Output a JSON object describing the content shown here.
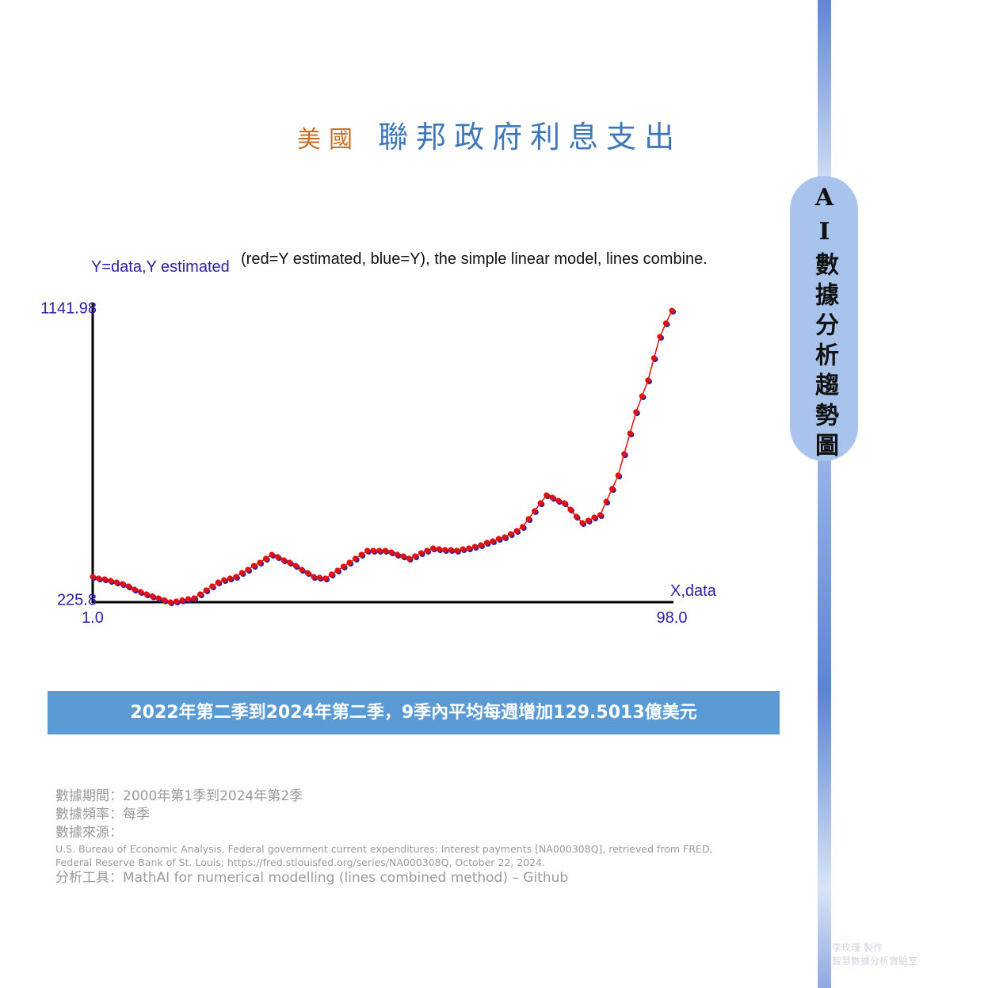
{
  "header": {
    "title_a": "美國",
    "title_b": "聯邦政府利息支出"
  },
  "side_label": "AI數據分析趨勢圖",
  "chart_data": {
    "type": "scatter",
    "ylabel": "Y=data,Y estimated",
    "title": "(red=Y estimated, blue=Y), the simple linear model, lines combine.",
    "xlabel": "X,data",
    "x": [
      1,
      2,
      3,
      4,
      5,
      6,
      7,
      8,
      9,
      10,
      11,
      12,
      13,
      14,
      15,
      16,
      17,
      18,
      19,
      20,
      21,
      22,
      23,
      24,
      25,
      26,
      27,
      28,
      29,
      30,
      31,
      32,
      33,
      34,
      35,
      36,
      37,
      38,
      39,
      40,
      41,
      42,
      43,
      44,
      45,
      46,
      47,
      48,
      49,
      50,
      51,
      52,
      53,
      54,
      55,
      56,
      57,
      58,
      59,
      60,
      61,
      62,
      63,
      64,
      65,
      66,
      67,
      68,
      69,
      70,
      71,
      72,
      73,
      74,
      75,
      76,
      77,
      78,
      79,
      80,
      81,
      82,
      83,
      84,
      85,
      86,
      87,
      88,
      89,
      90,
      91,
      92,
      93,
      94,
      95,
      96,
      97,
      98
    ],
    "series": [
      {
        "color": "#2a1fa8",
        "values": [
          305.5,
          300.5,
          298.0,
          293.0,
          288.1,
          283.1,
          275.6,
          265.6,
          258.2,
          250.7,
          244.5,
          238.3,
          232.0,
          225.8,
          228.3,
          232.0,
          235.8,
          238.3,
          250.7,
          263.2,
          275.6,
          288.1,
          295.5,
          300.5,
          305.5,
          317.9,
          327.9,
          340.3,
          350.3,
          362.8,
          375.2,
          367.7,
          357.8,
          350.3,
          340.3,
          327.9,
          317.9,
          305.5,
          303.0,
          300.5,
          313.0,
          325.4,
          337.9,
          350.3,
          362.8,
          375.2,
          387.7,
          387.7,
          387.7,
          387.7,
          382.7,
          375.2,
          370.2,
          362.8,
          370.2,
          380.2,
          387.7,
          395.1,
          392.6,
          390.1,
          390.1,
          387.7,
          392.6,
          395.1,
          400.1,
          405.1,
          412.6,
          417.5,
          425.0,
          430.0,
          439.9,
          449.9,
          462.4,
          487.3,
          512.2,
          537.1,
          562.0,
          554.5,
          544.5,
          537.1,
          517.1,
          494.7,
          474.8,
          482.3,
          492.2,
          499.7,
          542.0,
          581.9,
          624.2,
          691.4,
          756.2,
          823.4,
          873.2,
          923.0,
          992.7,
          1060.0,
          1102.3,
          1141.98
        ]
      },
      {
        "color": "#e01010",
        "values": [
          305.5,
          300.5,
          298.0,
          293.0,
          288.1,
          283.1,
          275.6,
          265.6,
          258.2,
          250.7,
          244.5,
          238.3,
          232.0,
          225.8,
          228.3,
          232.0,
          235.8,
          238.3,
          250.7,
          263.2,
          275.6,
          288.1,
          295.5,
          300.5,
          305.5,
          317.9,
          327.9,
          340.3,
          350.3,
          362.8,
          375.2,
          367.7,
          357.8,
          350.3,
          340.3,
          327.9,
          317.9,
          305.5,
          303.0,
          300.5,
          313.0,
          325.4,
          337.9,
          350.3,
          362.8,
          375.2,
          387.7,
          387.7,
          387.7,
          387.7,
          382.7,
          375.2,
          370.2,
          362.8,
          370.2,
          380.2,
          387.7,
          395.1,
          392.6,
          390.1,
          390.1,
          387.7,
          392.6,
          395.1,
          400.1,
          405.1,
          412.6,
          417.5,
          425.0,
          430.0,
          439.9,
          449.9,
          462.4,
          487.3,
          512.2,
          537.1,
          562.0,
          554.5,
          544.5,
          537.1,
          517.1,
          494.7,
          474.8,
          482.3,
          492.2,
          499.7,
          542.0,
          581.9,
          624.2,
          691.4,
          756.2,
          823.4,
          873.2,
          923.0,
          992.7,
          1060.0,
          1102.3,
          1141.98
        ]
      }
    ],
    "xlim": [
      1,
      98
    ],
    "xticks": [
      {
        "value": 1,
        "label": "1.0"
      },
      {
        "value": 98,
        "label": "98.0"
      }
    ],
    "ylim": [
      225.8,
      1141.98
    ],
    "yticks": [
      225.8,
      1141.98
    ],
    "grid": false
  },
  "summary": "2022年第二季到2024年第二季，9季內平均每週增加129.5013億美元",
  "notes": [
    "數據期間：2000年第1季到2024年第2季",
    "數據頻率：每季",
    "數據來源：",
    "U.S. Bureau of Economic Analysis, Federal government current expenditures: Interest payments [NA000308Q], retrieved from FRED,",
    "Federal Reserve Bank of St. Louis; https://fred.stlouisfed.org/series/NA000308Q, October 22, 2024.",
    "分析工具：MathAI for numerical modelling (lines combined method) – Github"
  ],
  "credit": [
    "李玫瑾 製作",
    "智慧數據分析實驗室"
  ]
}
